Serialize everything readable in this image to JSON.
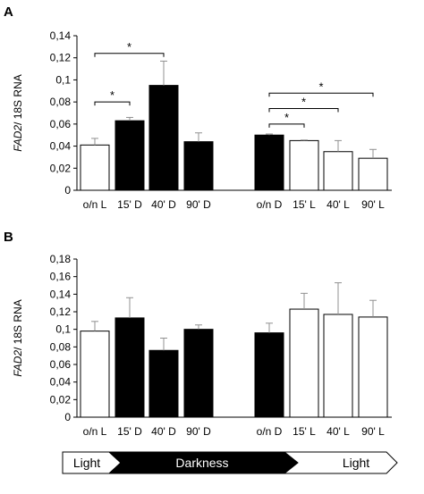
{
  "chart_data": [
    {
      "panel_label": "A",
      "type": "bar",
      "ylabel_italic": "FAD2",
      "ylabel_rest": "/ 18S RNA",
      "ylim": [
        0,
        0.14
      ],
      "yticks": [
        "0",
        "0,02",
        "0,04",
        "0,06",
        "0,08",
        "0,1",
        "0,12",
        "0,14"
      ],
      "categories": [
        "o/n L",
        "15' D",
        "40' D",
        "90' D",
        "o/n D",
        "15' L",
        "40' L",
        "90' L"
      ],
      "values": [
        0.041,
        0.063,
        0.095,
        0.044,
        0.05,
        0.045,
        0.035,
        0.029
      ],
      "errors": [
        0.006,
        0.003,
        0.022,
        0.008,
        0.001,
        0.0005,
        0.01,
        0.008
      ],
      "fill": [
        "white",
        "black",
        "black",
        "black",
        "black",
        "white",
        "white",
        "white"
      ],
      "significance": [
        {
          "from": 0,
          "to": 1,
          "label": "*"
        },
        {
          "from": 0,
          "to": 2,
          "label": "*"
        },
        {
          "from": 4,
          "to": 5,
          "label": "*"
        },
        {
          "from": 4,
          "to": 6,
          "label": "*"
        },
        {
          "from": 4,
          "to": 7,
          "label": "*"
        }
      ],
      "grid": false
    },
    {
      "panel_label": "B",
      "type": "bar",
      "ylabel_italic": "FAD2",
      "ylabel_rest": "/ 18S RNA",
      "ylim": [
        0,
        0.18
      ],
      "yticks": [
        "0",
        "0,02",
        "0,04",
        "0,06",
        "0,08",
        "0,1",
        "0,12",
        "0,14",
        "0,16",
        "0,18"
      ],
      "categories": [
        "o/n L",
        "15' D",
        "40' D",
        "90' D",
        "o/n D",
        "15' L",
        "40' L",
        "90' L"
      ],
      "values": [
        0.098,
        0.113,
        0.076,
        0.1,
        0.096,
        0.123,
        0.117,
        0.114
      ],
      "errors": [
        0.011,
        0.023,
        0.014,
        0.005,
        0.011,
        0.018,
        0.036,
        0.019
      ],
      "fill": [
        "white",
        "black",
        "black",
        "black",
        "black",
        "white",
        "white",
        "white"
      ],
      "significance": [],
      "grid": false
    }
  ],
  "timeline": {
    "segments": [
      "Light",
      "Darkness",
      "Light"
    ]
  },
  "colors": {
    "dark_bar": "#000000",
    "light_bar": "#ffffff",
    "outline": "#000000",
    "error_bar": "#909090",
    "text": "#000000"
  }
}
